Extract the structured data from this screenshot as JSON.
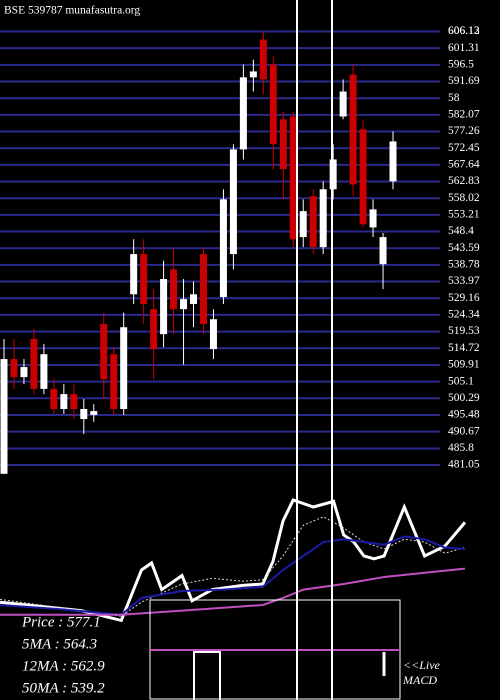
{
  "chart_data": {
    "type": "candlestick",
    "title": "BSE 539787 munafasutra.org",
    "up_color": "#ffffff",
    "down_color": "#cc0000",
    "grid_color": "#2a2a8c",
    "ylim": [
      477,
      608
    ],
    "yticks": [
      606.13,
      606.12,
      601.31,
      596.5,
      591.69,
      {
        "value": 586.88,
        "label": "58"
      },
      582.07,
      577.26,
      572.45,
      567.64,
      562.83,
      558.02,
      553.21,
      548.4,
      543.59,
      538.78,
      533.97,
      529.16,
      524.34,
      519.53,
      514.72,
      509.91,
      505.1,
      500.29,
      495.48,
      490.67,
      485.8,
      481.05
    ],
    "open": [
      478.5,
      511.6,
      506.4,
      517.4,
      503.0,
      503.0,
      497.2,
      501.5,
      494.3,
      495.5,
      521.7,
      513.0,
      497.2,
      530.3,
      541.9,
      526.0,
      518.8,
      537.5,
      526.0,
      527.5,
      541.9,
      514.5,
      529.5,
      541.9,
      572.1,
      592.9,
      603.8,
      596.6,
      580.8,
      581.6,
      546.8,
      558.6,
      543.9,
      560.6,
      581.6,
      593.7,
      577.9,
      549.6,
      539.0,
      562.9
    ],
    "high": [
      517.4,
      517.4,
      511.6,
      520.3,
      516.0,
      506.0,
      504.4,
      504.4,
      500.1,
      498.6,
      525.0,
      515.0,
      525.0,
      546.2,
      546.2,
      531.8,
      540.0,
      543.9,
      534.7,
      534.0,
      543.9,
      526.0,
      560.6,
      573.6,
      596.6,
      598.0,
      606.13,
      599.0,
      583.0,
      583.0,
      557.7,
      560.6,
      562.9,
      573.6,
      592.3,
      596.6,
      580.8,
      557.7,
      548.0,
      577.3
    ],
    "low": [
      478.5,
      503.0,
      504.4,
      501.5,
      501.5,
      495.8,
      495.8,
      494.3,
      490.0,
      493.5,
      500.1,
      495.5,
      495.5,
      527.5,
      521.7,
      505.8,
      515.0,
      518.8,
      510.0,
      520.8,
      518.8,
      511.6,
      527.5,
      537.5,
      569.2,
      588.8,
      588.0,
      566.4,
      557.7,
      543.9,
      543.9,
      541.9,
      541.9,
      557.7,
      580.8,
      558.6,
      549.6,
      546.8,
      531.8,
      560.6
    ],
    "close": [
      511.6,
      506.4,
      509.3,
      503.0,
      513.0,
      497.2,
      501.5,
      497.2,
      497.2,
      496.6,
      505.8,
      497.2,
      520.8,
      541.9,
      527.5,
      514.5,
      534.7,
      526.0,
      528.9,
      530.3,
      521.7,
      523.1,
      557.7,
      572.1,
      592.9,
      594.6,
      592.3,
      573.6,
      566.4,
      546.2,
      554.3,
      543.9,
      560.6,
      569.2,
      588.8,
      562.0,
      550.5,
      554.8,
      546.8,
      574.4
    ],
    "legend_lines": [
      "Price : 577.1",
      "5MA : 564.3",
      "12MA : 562.9",
      "50MA : 539.2"
    ],
    "live_label": "<<Live",
    "macd_label": "MACD",
    "indicator": {
      "type": "line",
      "xlim": [
        0,
        46
      ],
      "ylim": [
        0,
        100
      ],
      "series": [
        {
          "name": "Price",
          "color": "#ffffff",
          "x": [
            0,
            4,
            8,
            12,
            14,
            15,
            16,
            18,
            19,
            21,
            24,
            26,
            27,
            28,
            29,
            31,
            33,
            34,
            35,
            36,
            37,
            38,
            40,
            42,
            44,
            46
          ],
          "values": [
            27,
            24,
            21,
            14,
            50,
            55,
            36,
            46,
            28,
            36,
            39,
            40,
            56,
            85,
            100,
            95,
            99,
            75,
            70,
            60,
            58,
            60,
            95,
            60,
            67,
            84
          ]
        },
        {
          "name": "5MA",
          "color": "#dddddd",
          "x": [
            0,
            12,
            14,
            18,
            21,
            24,
            26,
            28,
            30,
            32,
            34,
            36,
            38,
            40,
            42,
            44,
            46
          ],
          "values": [
            29,
            17,
            27,
            40,
            44,
            42,
            43,
            60,
            82,
            88,
            80,
            70,
            65,
            72,
            70,
            62,
            66
          ]
        },
        {
          "name": "12MA",
          "color": "#1a1aa8",
          "x": [
            0,
            6,
            12,
            14,
            18,
            22,
            26,
            28,
            30,
            32,
            34,
            36,
            38,
            40,
            42,
            44,
            46
          ],
          "values": [
            25,
            22,
            18,
            30,
            35,
            36,
            38,
            50,
            60,
            70,
            72,
            70,
            68,
            74,
            72,
            66,
            65
          ]
        },
        {
          "name": "50MA",
          "color": "#c050c0",
          "x": [
            0,
            12,
            16,
            20,
            26,
            28,
            30,
            34,
            38,
            42,
            46
          ],
          "values": [
            18,
            18,
            20,
            22,
            25,
            30,
            36,
            40,
            45,
            48,
            51
          ]
        }
      ]
    }
  }
}
